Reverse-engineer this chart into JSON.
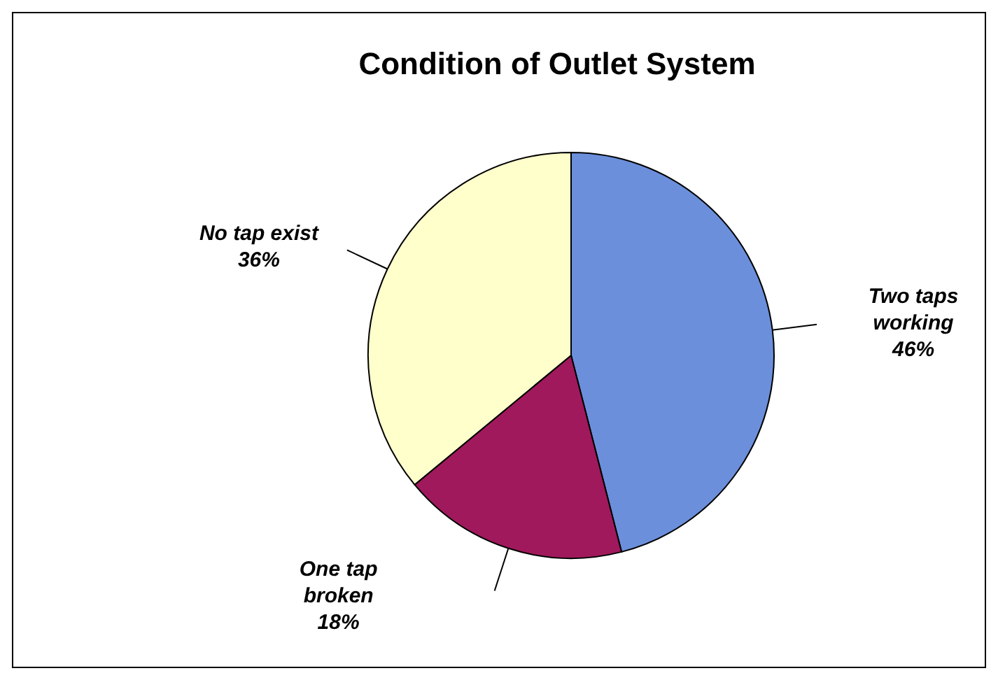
{
  "chart_data": {
    "type": "pie",
    "title": "Condition of Outlet System",
    "categories": [
      "Two taps working",
      "One tap broken",
      "No tap exist"
    ],
    "values": [
      46,
      18,
      36
    ],
    "value_labels": [
      "46%",
      "18%",
      "36%"
    ],
    "colors": [
      "#6b8fdb",
      "#a0195c",
      "#ffffcc"
    ],
    "legend": false
  }
}
